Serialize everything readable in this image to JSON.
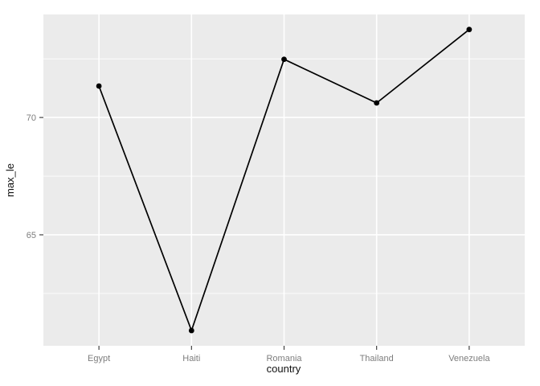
{
  "chart_data": {
    "type": "line",
    "title": "",
    "xlabel": "country",
    "ylabel": "max_le",
    "categories": [
      "Egypt",
      "Haiti",
      "Romania",
      "Thailand",
      "Venezuela"
    ],
    "values": [
      71.34,
      60.92,
      72.48,
      70.62,
      73.75
    ],
    "series_name": "max_le",
    "ylim": [
      60.27,
      74.39
    ],
    "y_major_ticks": [
      65,
      70
    ],
    "y_major_tick_labels": [
      "65",
      "70"
    ],
    "y_minor_ticks": [
      62.5,
      67.5,
      72.5
    ],
    "x_axis_discrete": true,
    "grid": "on",
    "legend": "none",
    "marker": "point",
    "style": {
      "background": "#ffffff",
      "panel_bg": "#ebebeb",
      "grid_major_color": "#ffffff",
      "grid_minor_color": "#ffffff",
      "line_color": "#000000",
      "point_color": "#000000",
      "axis_tick_color": "#333333",
      "tick_label_color": "#7d7d7d",
      "axis_title_color": "#111111"
    }
  }
}
